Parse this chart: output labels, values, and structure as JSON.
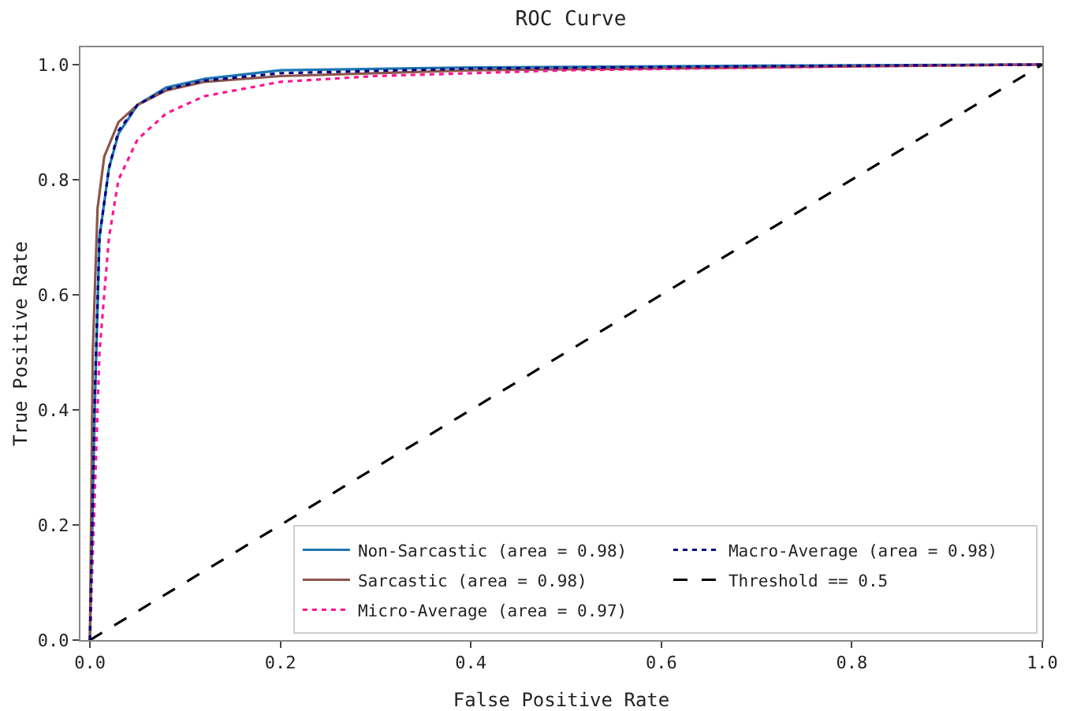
{
  "chart_data": {
    "type": "line",
    "title": "ROC Curve",
    "xlabel": "False Positive Rate",
    "ylabel": "True Positive Rate",
    "xlim": [
      -0.01,
      1.0
    ],
    "ylim": [
      0,
      1.03
    ],
    "xticks": [
      {
        "value": 0,
        "label": "0.0"
      },
      0.2,
      0.4,
      0.6,
      0.8,
      {
        "value": 1,
        "label": "1.0"
      }
    ],
    "yticks": [
      {
        "value": 0,
        "label": "0.0"
      },
      0.2,
      0.4,
      0.6,
      0.8,
      {
        "value": 1,
        "label": "1.0"
      }
    ],
    "grid": false,
    "legend": "bottom right",
    "series": [
      {
        "name": "Non-Sarcastic (area = 0.98)",
        "color": "#1f77b4",
        "line_style": "solid",
        "x": [
          0,
          0.005,
          0.01,
          0.02,
          0.03,
          0.05,
          0.08,
          0.12,
          0.2,
          0.4,
          0.7,
          1
        ],
        "values": [
          0,
          0.4,
          0.7,
          0.82,
          0.88,
          0.93,
          0.96,
          0.975,
          0.99,
          0.995,
          0.998,
          1
        ]
      },
      {
        "name": "Sarcastic (area = 0.98)",
        "color": "#8c564b",
        "line_style": "solid",
        "x": [
          0,
          0.003,
          0.008,
          0.015,
          0.03,
          0.05,
          0.08,
          0.12,
          0.2,
          0.4,
          0.7,
          1
        ],
        "values": [
          0,
          0.5,
          0.75,
          0.84,
          0.9,
          0.93,
          0.955,
          0.97,
          0.98,
          0.99,
          0.995,
          1
        ]
      },
      {
        "name": "Micro-Average (area = 0.97)",
        "color": "#ff1493",
        "line_style": "dotted",
        "x": [
          0,
          0.01,
          0.02,
          0.03,
          0.05,
          0.08,
          0.12,
          0.2,
          0.3,
          0.5,
          0.8,
          1
        ],
        "values": [
          0,
          0.5,
          0.7,
          0.8,
          0.87,
          0.915,
          0.945,
          0.97,
          0.98,
          0.99,
          0.997,
          1
        ]
      },
      {
        "name": "Macro-Average (area = 0.98)",
        "color": "#000080",
        "line_style": "dotted",
        "x": [
          0,
          0.005,
          0.01,
          0.02,
          0.03,
          0.05,
          0.08,
          0.12,
          0.2,
          0.4,
          0.7,
          1
        ],
        "values": [
          0,
          0.42,
          0.7,
          0.82,
          0.885,
          0.93,
          0.957,
          0.972,
          0.985,
          0.993,
          0.997,
          1
        ]
      },
      {
        "name": "Threshold == 0.5",
        "color": "#000000",
        "line_style": "dashed",
        "x": [
          0,
          1
        ],
        "values": [
          0,
          1
        ]
      }
    ]
  }
}
